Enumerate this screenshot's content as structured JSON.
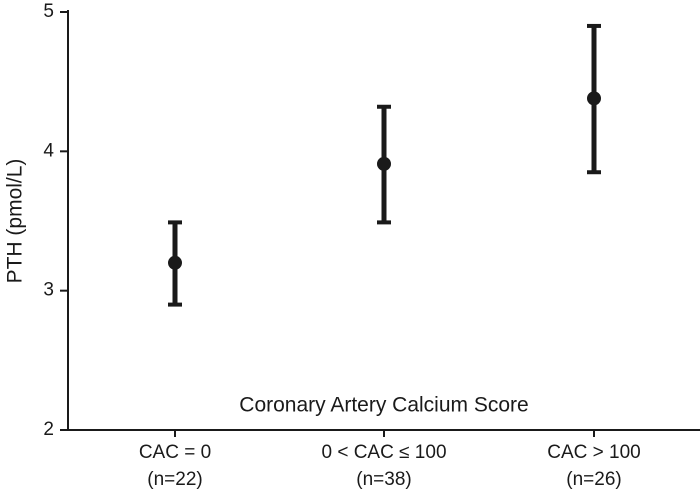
{
  "chart_data": {
    "type": "errorbar",
    "x_label": "Coronary Artery Calcium Score",
    "y_label": "PTH (pmol/L)",
    "categories": [
      "CAC = 0",
      "0 < CAC ≤ 100",
      "CAC > 100"
    ],
    "category_counts": [
      "(n=22)",
      "(n=38)",
      "(n=26)"
    ],
    "values": [
      3.2,
      3.91,
      4.38
    ],
    "lower": [
      2.9,
      3.49,
      3.85
    ],
    "upper": [
      3.49,
      4.32,
      4.9
    ],
    "color": "#1a1a1a",
    "ylim": [
      2,
      5
    ],
    "yticks": [
      2,
      3,
      4,
      5
    ],
    "grid": false
  }
}
